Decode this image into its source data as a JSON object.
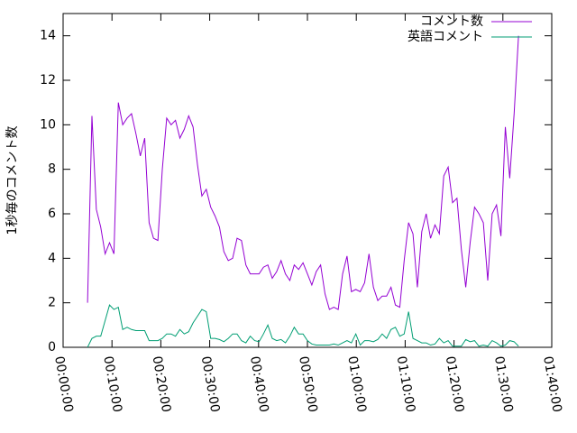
{
  "chart_data": {
    "type": "line",
    "ylabel": "1秒毎のコメント数",
    "x": [
      300,
      354,
      408,
      462,
      516,
      570,
      624,
      678,
      732,
      786,
      840,
      894,
      948,
      1002,
      1056,
      1110,
      1164,
      1218,
      1272,
      1326,
      1380,
      1434,
      1488,
      1542,
      1596,
      1650,
      1704,
      1758,
      1812,
      1866,
      1920,
      1974,
      2028,
      2082,
      2136,
      2190,
      2244,
      2298,
      2352,
      2406,
      2460,
      2514,
      2568,
      2622,
      2676,
      2730,
      2784,
      2838,
      2892,
      2946,
      3000,
      3054,
      3108,
      3162,
      3216,
      3270,
      3324,
      3378,
      3432,
      3486,
      3540,
      3594,
      3648,
      3702,
      3756,
      3810,
      3864,
      3918,
      3972,
      4026,
      4080,
      4134,
      4188,
      4242,
      4296,
      4350,
      4404,
      4458,
      4512,
      4566,
      4620,
      4674,
      4728,
      4782,
      4836,
      4890,
      4944,
      4998,
      5052,
      5106,
      5160,
      5214,
      5268,
      5322,
      5376,
      5430,
      5484,
      5538,
      5592
    ],
    "series": [
      {
        "name": "コメント数",
        "color": "#9400d3",
        "values": [
          2.0,
          10.4,
          6.2,
          5.4,
          4.2,
          4.7,
          4.2,
          11.0,
          10.0,
          10.3,
          10.5,
          9.6,
          8.6,
          9.4,
          5.6,
          4.9,
          4.8,
          8.0,
          10.3,
          10.0,
          10.2,
          9.4,
          9.8,
          10.4,
          9.9,
          8.2,
          6.8,
          7.1,
          6.3,
          5.9,
          5.4,
          4.3,
          3.9,
          4.0,
          4.9,
          4.8,
          3.7,
          3.3,
          3.3,
          3.3,
          3.6,
          3.7,
          3.1,
          3.4,
          3.9,
          3.3,
          3.0,
          3.7,
          3.5,
          3.8,
          3.3,
          2.8,
          3.4,
          3.7,
          2.4,
          1.7,
          1.8,
          1.7,
          3.3,
          4.1,
          2.5,
          2.6,
          2.5,
          2.9,
          4.2,
          2.7,
          2.1,
          2.3,
          2.3,
          2.7,
          1.9,
          1.8,
          3.9,
          5.6,
          5.1,
          2.7,
          5.2,
          6.0,
          4.9,
          5.5,
          5.1,
          7.7,
          8.1,
          6.5,
          6.7,
          4.4,
          2.7,
          4.7,
          6.3,
          6.0,
          5.6,
          3.0,
          6.0,
          6.4,
          5.0,
          9.9,
          7.6,
          10.5,
          14.0
        ]
      },
      {
        "name": "英語コメント",
        "color": "#009e73",
        "values": [
          0.0,
          0.4,
          0.5,
          0.5,
          1.2,
          1.9,
          1.7,
          1.8,
          0.8,
          0.9,
          0.8,
          0.75,
          0.75,
          0.75,
          0.3,
          0.3,
          0.3,
          0.4,
          0.6,
          0.6,
          0.5,
          0.8,
          0.6,
          0.7,
          1.1,
          1.4,
          1.7,
          1.6,
          0.4,
          0.4,
          0.35,
          0.25,
          0.4,
          0.6,
          0.6,
          0.3,
          0.2,
          0.5,
          0.3,
          0.25,
          0.6,
          1.0,
          0.4,
          0.3,
          0.35,
          0.2,
          0.5,
          0.9,
          0.6,
          0.6,
          0.3,
          0.15,
          0.1,
          0.1,
          0.1,
          0.1,
          0.15,
          0.1,
          0.2,
          0.3,
          0.2,
          0.6,
          0.1,
          0.3,
          0.3,
          0.25,
          0.35,
          0.6,
          0.4,
          0.8,
          0.9,
          0.5,
          0.6,
          1.6,
          0.4,
          0.3,
          0.2,
          0.2,
          0.1,
          0.15,
          0.4,
          0.2,
          0.3,
          0.05,
          0.05,
          0.05,
          0.35,
          0.25,
          0.3,
          0.05,
          0.1,
          0.05,
          0.3,
          0.2,
          0.05,
          0.1,
          0.3,
          0.25,
          0.05
        ]
      }
    ],
    "xlim": [
      0,
      6000
    ],
    "xticks": [
      {
        "value": 0,
        "label": "00:00:00"
      },
      {
        "value": 600,
        "label": "00:10:00"
      },
      {
        "value": 1200,
        "label": "00:20:00"
      },
      {
        "value": 1800,
        "label": "00:30:00"
      },
      {
        "value": 2400,
        "label": "00:40:00"
      },
      {
        "value": 3000,
        "label": "00:50:00"
      },
      {
        "value": 3600,
        "label": "01:00:00"
      },
      {
        "value": 4200,
        "label": "01:10:00"
      },
      {
        "value": 4800,
        "label": "01:20:00"
      },
      {
        "value": 5400,
        "label": "01:30:00"
      },
      {
        "value": 6000,
        "label": "01:40:00"
      }
    ],
    "ylim": [
      0,
      15
    ],
    "yticks": [
      0,
      2,
      4,
      6,
      8,
      10,
      12,
      14
    ],
    "grid": false,
    "legend": "top-right"
  }
}
